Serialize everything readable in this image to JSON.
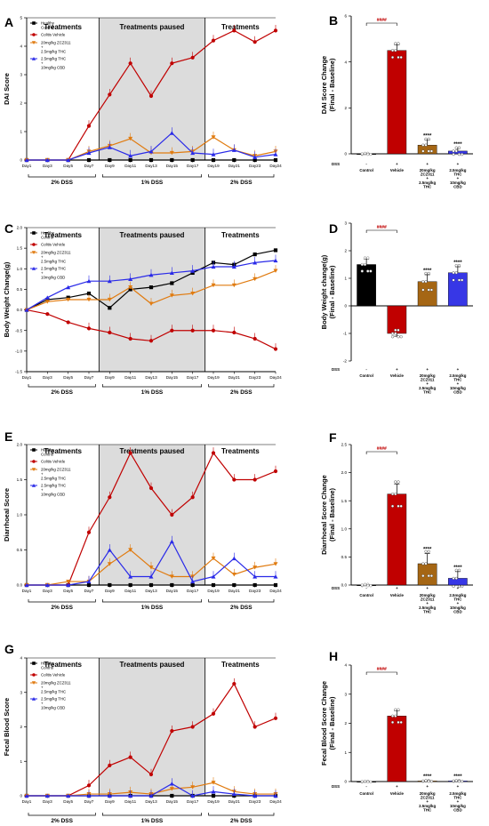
{
  "colors": {
    "healthy": "#000000",
    "vehicle": "#c00000",
    "zcz_thc": "#e07b10",
    "thc_cbd": "#2a2ae8",
    "bar_thc": "#a56614",
    "bar_cbd": "#3737e6",
    "shade": "#dcdcdc"
  },
  "days": [
    "Day1",
    "Day3",
    "Day5",
    "Day7",
    "Day9",
    "Day11",
    "Day13",
    "Day15",
    "Day17",
    "Day19",
    "Day21",
    "Day23",
    "Day24"
  ],
  "phases": {
    "top": [
      "Treatments",
      "Treatments paused",
      "Treatments"
    ],
    "bottom": [
      "2% DSS",
      "1% DSS",
      "2% DSS"
    ]
  },
  "legend": [
    {
      "key": "healthy",
      "label": "Healthy\nControl",
      "marker": "square"
    },
    {
      "key": "vehicle",
      "label": "Colitis Vehicle",
      "marker": "circle"
    },
    {
      "key": "zcz_thc",
      "label": "20mg/kg ZCZ011\n+\n2.5mg/kg THC",
      "marker": "tri-down"
    },
    {
      "key": "thc_cbd",
      "label": "2.5mg/kg THC\n+\n10mg/kg CBD",
      "marker": "tri-up"
    }
  ],
  "bar_groups": [
    "Control",
    "Vehicle",
    "20mg/kg\nZCZ011\n+\n2.5mg/kg\nTHC",
    "2.5mg/kg\nTHC\n+\n10mg/kg\nCBD"
  ],
  "dss_row": {
    "label": "DSS",
    "marks": [
      "-",
      "+",
      "+",
      "+"
    ]
  },
  "panels": [
    {
      "letter": "A",
      "kind": "line",
      "ylabel": "DAI Score",
      "ylim": [
        0,
        5
      ],
      "yticks": [
        0,
        1,
        2,
        3,
        4,
        5
      ],
      "series": [
        {
          "key": "healthy",
          "values": [
            0,
            0,
            0,
            0,
            0,
            0,
            0,
            0,
            0,
            0,
            0,
            0,
            0
          ]
        },
        {
          "key": "vehicle",
          "values": [
            0,
            0,
            0,
            1.2,
            2.3,
            3.4,
            2.25,
            3.4,
            3.6,
            4.2,
            4.55,
            4.15,
            4.55
          ]
        },
        {
          "key": "zcz_thc",
          "values": [
            0,
            0,
            0,
            0.3,
            0.5,
            0.75,
            0.25,
            0.25,
            0.3,
            0.8,
            0.35,
            0.15,
            0.3
          ]
        },
        {
          "key": "thc_cbd",
          "values": [
            0,
            0,
            0,
            0.25,
            0.45,
            0.15,
            0.3,
            0.95,
            0.25,
            0.2,
            0.35,
            0.1,
            0.2
          ]
        }
      ]
    },
    {
      "letter": "B",
      "kind": "bar",
      "ylabel": "DAI Score Change\n(Final - Baseline)",
      "ylim": [
        0,
        6
      ],
      "yticks": [
        0,
        2,
        4,
        6
      ],
      "values": [
        0,
        4.5,
        0.38,
        0.12
      ],
      "errors": [
        0.02,
        0.25,
        0.22,
        0.12
      ],
      "sig_top": "####",
      "sig": [
        "",
        "",
        "****",
        "****"
      ]
    },
    {
      "letter": "C",
      "kind": "line",
      "ylabel": "Body Weight Change(g)",
      "ylim": [
        -1.5,
        2.0
      ],
      "yticks": [
        -1.5,
        -1.0,
        -0.5,
        0.0,
        0.5,
        1.0,
        1.5,
        2.0
      ],
      "series": [
        {
          "key": "healthy",
          "values": [
            0,
            0.25,
            0.3,
            0.4,
            0.05,
            0.5,
            0.55,
            0.65,
            0.9,
            1.15,
            1.1,
            1.35,
            1.45
          ]
        },
        {
          "key": "vehicle",
          "values": [
            0,
            -0.1,
            -0.3,
            -0.45,
            -0.55,
            -0.7,
            -0.75,
            -0.5,
            -0.5,
            -0.5,
            -0.55,
            -0.7,
            -0.95
          ]
        },
        {
          "key": "zcz_thc",
          "values": [
            0,
            0.2,
            0.25,
            0.25,
            0.25,
            0.55,
            0.15,
            0.35,
            0.4,
            0.6,
            0.6,
            0.75,
            0.95
          ]
        },
        {
          "key": "thc_cbd",
          "values": [
            0,
            0.3,
            0.55,
            0.7,
            0.7,
            0.75,
            0.85,
            0.9,
            0.95,
            1.05,
            1.05,
            1.15,
            1.2
          ]
        }
      ]
    },
    {
      "letter": "D",
      "kind": "bar",
      "ylabel": "Body Weight change(g)\n(Final - Baseline)",
      "ylim": [
        -2,
        3
      ],
      "yticks": [
        -2,
        -1,
        0,
        1,
        2,
        3
      ],
      "values": [
        1.5,
        -1.0,
        0.88,
        1.2
      ],
      "errors": [
        0.2,
        0.1,
        0.25,
        0.22
      ],
      "sig_top": "####",
      "sig": [
        "",
        "",
        "****",
        "****"
      ]
    },
    {
      "letter": "E",
      "kind": "line",
      "ylabel": "Diarrhoeal Score",
      "ylim": [
        0,
        2.0
      ],
      "yticks": [
        0.0,
        0.5,
        1.0,
        1.5,
        2.0
      ],
      "series": [
        {
          "key": "healthy",
          "values": [
            0,
            0,
            0,
            0,
            0,
            0,
            0,
            0,
            0,
            0,
            0,
            0,
            0
          ]
        },
        {
          "key": "vehicle",
          "values": [
            0,
            0,
            0,
            0.75,
            1.25,
            1.88,
            1.38,
            1.0,
            1.25,
            1.88,
            1.5,
            1.5,
            1.62
          ]
        },
        {
          "key": "zcz_thc",
          "values": [
            0,
            0,
            0.05,
            0.05,
            0.3,
            0.5,
            0.25,
            0.12,
            0.12,
            0.38,
            0.15,
            0.25,
            0.3
          ]
        },
        {
          "key": "thc_cbd",
          "values": [
            0,
            0,
            0,
            0.05,
            0.5,
            0.12,
            0.12,
            0.62,
            0.05,
            0.12,
            0.38,
            0.12,
            0.12
          ]
        }
      ]
    },
    {
      "letter": "F",
      "kind": "bar",
      "ylabel": "Diarrhoeal Score Change\n(Final - Baseline)",
      "ylim": [
        0,
        2.5
      ],
      "yticks": [
        0.0,
        0.5,
        1.0,
        1.5,
        2.0,
        2.5
      ],
      "values": [
        0,
        1.62,
        0.38,
        0.12
      ],
      "errors": [
        0.01,
        0.18,
        0.18,
        0.12
      ],
      "sig_top": "####",
      "sig": [
        "",
        "",
        "****",
        "****"
      ]
    },
    {
      "letter": "G",
      "kind": "line",
      "ylabel": "Fecal Blood Score",
      "ylim": [
        0,
        4
      ],
      "yticks": [
        0,
        1,
        2,
        3,
        4
      ],
      "series": [
        {
          "key": "healthy",
          "values": [
            0,
            0,
            0,
            0,
            0,
            0,
            0,
            0,
            0,
            0,
            0,
            0,
            0
          ]
        },
        {
          "key": "vehicle",
          "values": [
            0,
            0,
            0,
            0.3,
            0.88,
            1.12,
            0.62,
            1.88,
            2.0,
            2.38,
            3.25,
            2.0,
            2.25
          ]
        },
        {
          "key": "zcz_thc",
          "values": [
            0,
            0,
            0,
            0.05,
            0.05,
            0.1,
            0.05,
            0.2,
            0.25,
            0.38,
            0.12,
            0.05,
            0.05
          ]
        },
        {
          "key": "thc_cbd",
          "values": [
            0,
            0,
            0,
            0,
            0,
            0,
            0,
            0.35,
            0,
            0.12,
            0.05,
            0,
            0
          ]
        }
      ]
    },
    {
      "letter": "H",
      "kind": "bar",
      "ylabel": "Fecal Blood Score Change\n(Final - Baseline)",
      "ylim": [
        0,
        4
      ],
      "yticks": [
        0,
        1,
        2,
        3,
        4
      ],
      "values": [
        0,
        2.25,
        0.02,
        0.02
      ],
      "errors": [
        0.01,
        0.18,
        0.01,
        0.01
      ],
      "sig_top": "####",
      "sig": [
        "",
        "",
        "****",
        "****"
      ]
    }
  ]
}
